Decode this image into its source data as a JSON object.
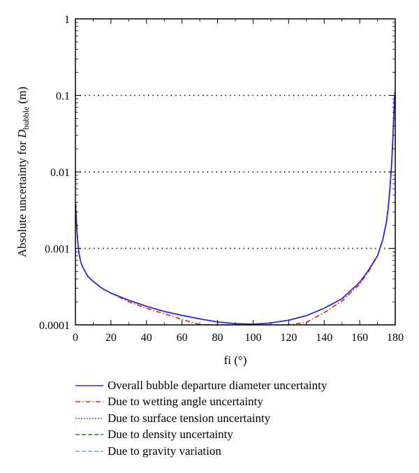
{
  "chart_data": {
    "type": "line",
    "xlabel": "fi (°)",
    "ylabel_prefix": "Absolute uncertainty for ",
    "ylabel_symbol": "D",
    "ylabel_subscript": "bubble",
    "ylabel_suffix": " (m)",
    "xlim": [
      0,
      180
    ],
    "ylim": [
      0.0001,
      1
    ],
    "yscale": "log",
    "x_ticks": [
      "0",
      "20",
      "40",
      "60",
      "80",
      "100",
      "120",
      "140",
      "160",
      "180"
    ],
    "y_ticks": [
      "0.0001",
      "0.001",
      "0.01",
      "0.1",
      "1"
    ],
    "grid": "horizontal dotted",
    "legend_position": "bottom",
    "series": [
      {
        "name": "Overall bubble departure diameter uncertainty",
        "color": "#2a2ad6",
        "dash": "solid",
        "x": [
          0.3,
          0.6,
          1,
          1.5,
          2,
          3,
          4,
          5,
          7,
          10,
          15,
          20,
          30,
          40,
          50,
          60,
          70,
          80,
          90,
          100,
          110,
          120,
          130,
          140,
          150,
          160,
          165,
          170,
          173,
          175,
          176,
          177,
          178,
          178.6,
          179.2,
          179.6
        ],
        "y": [
          0.0032,
          0.0022,
          0.0015,
          0.0011,
          0.00086,
          0.00066,
          0.00058,
          0.00052,
          0.00043,
          0.00037,
          0.0003,
          0.00026,
          0.00021,
          0.000175,
          0.00015,
          0.000133,
          0.00012,
          0.000109,
          0.000104,
          0.000102,
          0.000106,
          0.000115,
          0.000132,
          0.000165,
          0.00022,
          0.00036,
          0.00052,
          0.0008,
          0.0013,
          0.0022,
          0.0033,
          0.006,
          0.013,
          0.025,
          0.055,
          0.1
        ]
      },
      {
        "name": "Due to wetting angle uncertainty",
        "color": "#e02020",
        "dash": "dashdot",
        "x": [
          0.3,
          0.6,
          1,
          1.5,
          2,
          3,
          4,
          5,
          7,
          10,
          15,
          20,
          30,
          40,
          50,
          60,
          70,
          80,
          90,
          100,
          110,
          120,
          130,
          140,
          150,
          160,
          165,
          170,
          173,
          175,
          176,
          177,
          178,
          178.6,
          179.2,
          179.6
        ],
        "y": [
          0.0038,
          0.0024,
          0.0016,
          0.0011,
          0.00087,
          0.00066,
          0.00058,
          0.00052,
          0.00043,
          0.00037,
          0.0003,
          0.00026,
          0.0002,
          0.000165,
          0.00014,
          0.000118,
          0.000101,
          0.0001,
          0.0001,
          0.0001,
          0.0001,
          0.0001,
          0.000108,
          0.000145,
          0.000205,
          0.00034,
          0.0005,
          0.0008,
          0.0013,
          0.0022,
          0.0034,
          0.0062,
          0.014,
          0.027,
          0.06,
          0.11
        ]
      },
      {
        "name": "Due to surface tension uncertainty",
        "color": "#1a1ab0",
        "dash": "dotted",
        "x": [
          179.8,
          179.9,
          180
        ],
        "y": [
          0.0001,
          0.00011,
          0.00013
        ]
      },
      {
        "name": "Due to density uncertainty",
        "color": "#1a8a1a",
        "dash": "dashed",
        "x": [
          179.8,
          179.9,
          180
        ],
        "y": [
          0.0001,
          0.0001,
          0.0001
        ]
      },
      {
        "name": "Due to gravity variation",
        "color": "#5ab4e8",
        "dash": "dashed",
        "x": [
          179.8,
          179.9,
          180
        ],
        "y": [
          0.0001,
          0.0001,
          0.0001
        ]
      }
    ]
  }
}
